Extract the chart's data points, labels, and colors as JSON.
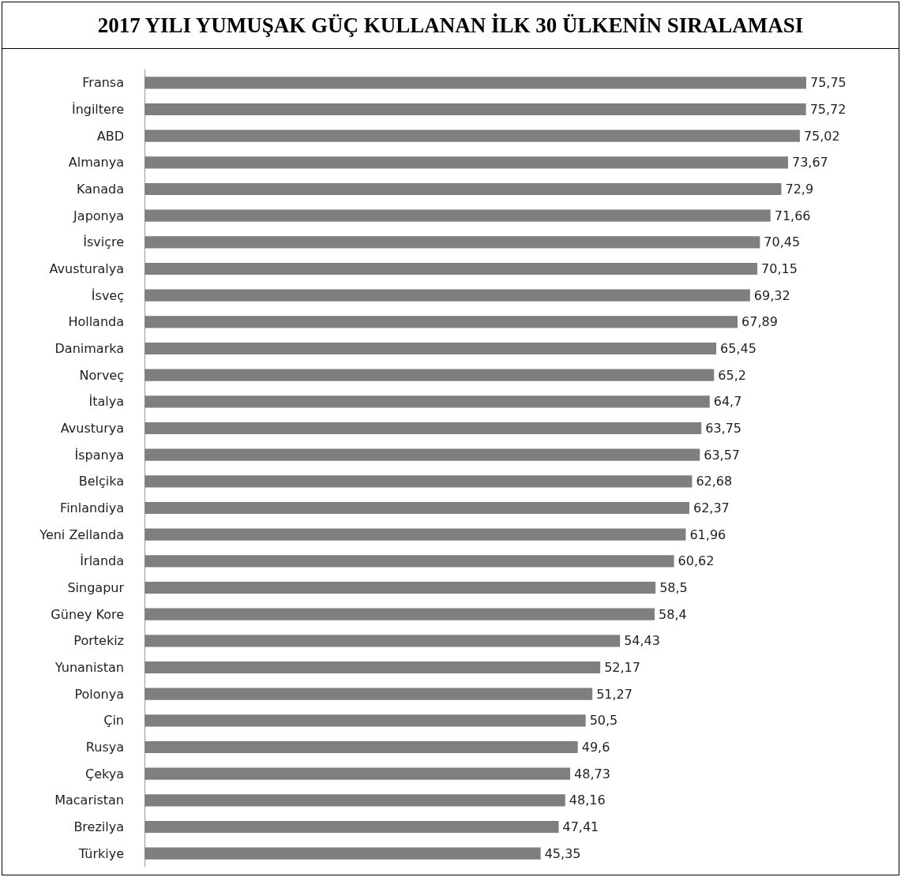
{
  "chart_data": {
    "type": "bar",
    "orientation": "horizontal",
    "title": "2017 YILI YUMUŞAK GÜÇ KULLANAN İLK 30 ÜLKENİN SIRALAMASI",
    "categories": [
      "Fransa",
      "İngiltere",
      "ABD",
      "Almanya",
      "Kanada",
      "Japonya",
      "İsviçre",
      "Avusturalya",
      "İsveç",
      "Hollanda",
      "Danimarka",
      "Norveç",
      "İtalya",
      "Avusturya",
      "İspanya",
      "Belçika",
      "Finlandiya",
      "Yeni Zellanda",
      "İrlanda",
      "Singapur",
      "Güney Kore",
      "Portekiz",
      "Yunanistan",
      "Polonya",
      "Çin",
      "Rusya",
      "Çekya",
      "Macaristan",
      "Brezilya",
      "Türkiye"
    ],
    "values": [
      75.75,
      75.72,
      75.02,
      73.67,
      72.9,
      71.66,
      70.45,
      70.15,
      69.32,
      67.89,
      65.45,
      65.2,
      64.7,
      63.75,
      63.57,
      62.68,
      62.37,
      61.96,
      60.62,
      58.5,
      58.4,
      54.43,
      52.17,
      51.27,
      50.5,
      49.6,
      48.73,
      48.16,
      47.41,
      45.35
    ],
    "value_labels": [
      "75,75",
      "75,72",
      "75,02",
      "73,67",
      "72,9",
      "71,66",
      "70,45",
      "70,15",
      "69,32",
      "67,89",
      "65,45",
      "65,2",
      "64,7",
      "63,75",
      "63,57",
      "62,68",
      "62,37",
      "61,96",
      "60,62",
      "58,5",
      "58,4",
      "54,43",
      "52,17",
      "51,27",
      "50,5",
      "49,6",
      "48,73",
      "48,16",
      "47,41",
      "45,35"
    ],
    "color": "#7f7f7f"
  }
}
